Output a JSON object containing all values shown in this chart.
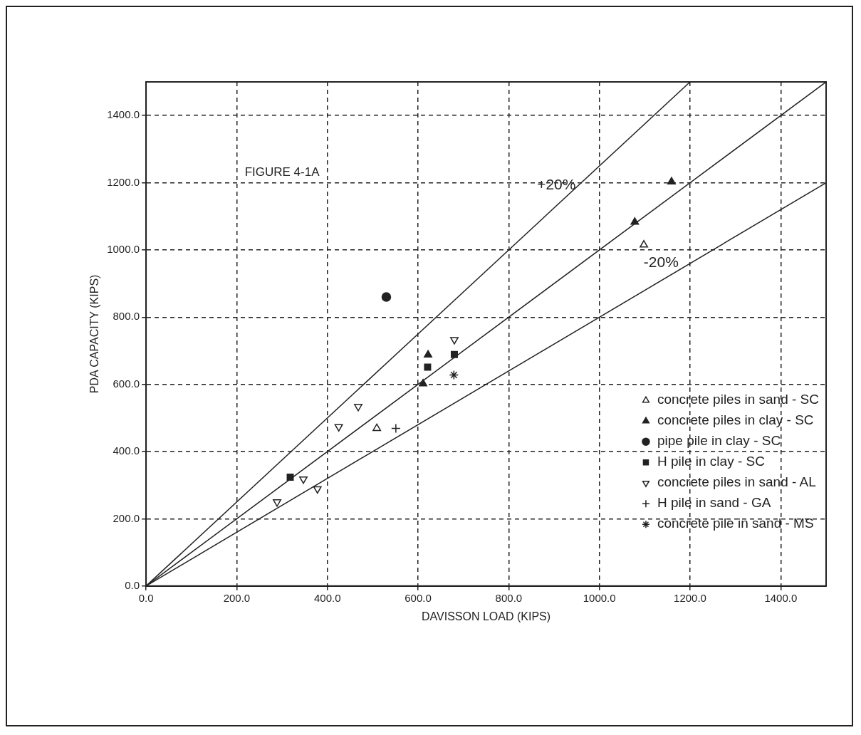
{
  "chart_data": {
    "type": "scatter",
    "xlabel": "DAVISSON LOAD (KIPS)",
    "ylabel": "PDA CAPACITY (KIPS)",
    "xlim": [
      0,
      1500
    ],
    "ylim": [
      0,
      1500
    ],
    "xticks": [
      {
        "value": 0,
        "label": "0.0"
      },
      {
        "value": 200,
        "label": "200.0"
      },
      {
        "value": 400,
        "label": "400.0"
      },
      {
        "value": 600,
        "label": "600.0"
      },
      {
        "value": 800,
        "label": "800.0"
      },
      {
        "value": 1000,
        "label": "1000.0"
      },
      {
        "value": 1200,
        "label": "1200.0"
      },
      {
        "value": 1400,
        "label": "1400.0"
      }
    ],
    "yticks": [
      {
        "value": 0,
        "label": "0.0"
      },
      {
        "value": 200,
        "label": "200.0"
      },
      {
        "value": 400,
        "label": "400.0"
      },
      {
        "value": 600,
        "label": "600.0"
      },
      {
        "value": 800,
        "label": "800.0"
      },
      {
        "value": 1000,
        "label": "1000.0"
      },
      {
        "value": 1200,
        "label": "1200.0"
      },
      {
        "value": 1400,
        "label": "1400.0"
      }
    ],
    "grid": true,
    "legend": "right",
    "line_style": "dashed",
    "annotations": [
      "FIGURE 4-1A"
    ],
    "series": [
      {
        "name": "concrete piles in sand - SC",
        "color": "#222222",
        "marker": "triangle-open",
        "x": [
          509,
          1098
        ],
        "values": [
          469,
          1015
        ]
      },
      {
        "name": "concrete piles in clay - SC",
        "color": "#222222",
        "marker": "triangle",
        "x": [
          611,
          622,
          1078,
          1159
        ],
        "values": [
          602,
          688,
          1083,
          1203
        ]
      },
      {
        "name": "pipe pile in clay - SC",
        "color": "#222222",
        "marker": "circle",
        "x": [
          530
        ],
        "values": [
          860
        ]
      },
      {
        "name": "H pile in clay - SC",
        "color": "#222222",
        "marker": "square",
        "x": [
          318,
          621,
          680
        ],
        "values": [
          324,
          651,
          689
        ]
      },
      {
        "name": "concrete piles in sand - AL",
        "color": "#222222",
        "marker": "triangle-down-open",
        "x": [
          289,
          347,
          378,
          425,
          468,
          680
        ],
        "values": [
          250,
          318,
          289,
          474,
          534,
          733
        ]
      },
      {
        "name": "H pile in sand - GA",
        "color": "#222222",
        "marker": "cross",
        "x": [
          551
        ],
        "values": [
          469
        ]
      },
      {
        "name": "concrete pile in sand - MS",
        "color": "#222222",
        "x": [
          679
        ],
        "values": [
          628
        ]
      },
      {
        "type": "line",
        "name": "+20%",
        "color": "#222222",
        "line_style": "solid",
        "marker": "none",
        "x": [
          0,
          1200
        ],
        "values": [
          0,
          1500
        ]
      },
      {
        "type": "line",
        "color": "#222222",
        "line_style": "solid",
        "marker": "none",
        "x": [
          0,
          1500
        ],
        "values": [
          0,
          1500
        ]
      },
      {
        "type": "line",
        "name": "-20%",
        "color": "#222222",
        "line_style": "solid",
        "marker": "none",
        "x": [
          0,
          1500
        ],
        "values": [
          0,
          1200
        ]
      }
    ]
  }
}
